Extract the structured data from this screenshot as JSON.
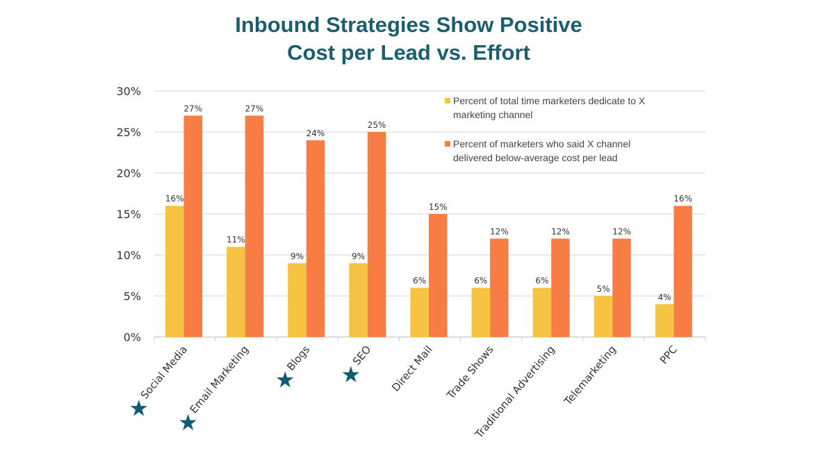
{
  "chart_data": {
    "type": "bar",
    "title": "Inbound Strategies Show Positive Cost per Lead vs. Effort",
    "title_lines": [
      "Inbound Strategies Show Positive",
      "Cost per Lead vs. Effort"
    ],
    "categories": [
      "Social Media",
      "Email Marketing",
      "Blogs",
      "SEO",
      "Direct Mail",
      "Trade Shows",
      "Traditional Advertising",
      "Telemarketing",
      "PPC"
    ],
    "starred": [
      true,
      true,
      true,
      true,
      false,
      false,
      false,
      false,
      false
    ],
    "star_color": "#0f5c72",
    "series": [
      {
        "name": "Percent of total time marketers dedicate to X marketing channel",
        "name_lines": [
          "Percent of total time marketers dedicate to X",
          "marketing channel"
        ],
        "color": "#f6c343",
        "values": [
          16,
          11,
          9,
          9,
          6,
          6,
          6,
          5,
          4
        ],
        "labels": [
          "16%",
          "11%",
          "9%",
          "9%",
          "6%",
          "6%",
          "6%",
          "5%",
          "4%"
        ]
      },
      {
        "name": "Percent of marketers who said X channel delivered below-average cost per lead",
        "name_lines": [
          "Percent of marketers who said X channel",
          "delivered below-average cost per lead"
        ],
        "color": "#f87d45",
        "values": [
          27,
          27,
          24,
          25,
          15,
          12,
          12,
          12,
          16
        ],
        "labels": [
          "27%",
          "27%",
          "24%",
          "25%",
          "15%",
          "12%",
          "12%",
          "12%",
          "16%"
        ]
      }
    ],
    "ylim": [
      0,
      30
    ],
    "yticks": [
      "0%",
      "5%",
      "10%",
      "15%",
      "20%",
      "25%",
      "30%"
    ],
    "xlabel": "",
    "ylabel": "",
    "grid": true,
    "legend": "top-right"
  }
}
